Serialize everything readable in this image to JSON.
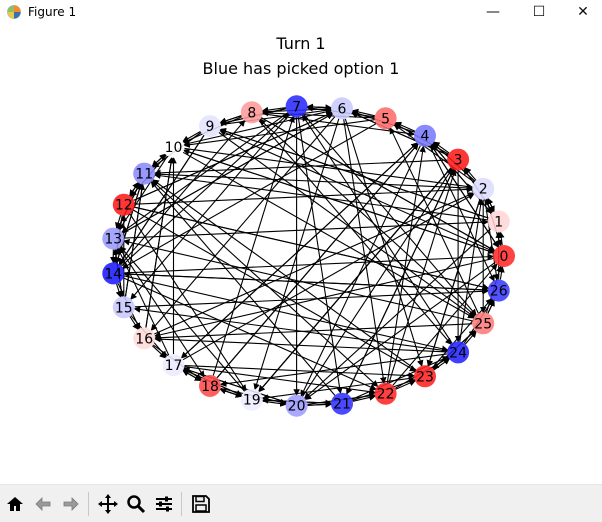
{
  "window": {
    "title": "Figure 1",
    "controls": {
      "minimize": "—",
      "maximize": "☐",
      "close": "✕"
    }
  },
  "figure": {
    "title_line1": "Turn 1",
    "title_line2": "Blue has picked option 1"
  },
  "graph": {
    "nodes": [
      {
        "id": "0",
        "color": "#ff2a2a"
      },
      {
        "id": "1",
        "color": "#ffd6d6"
      },
      {
        "id": "2",
        "color": "#dcdcff"
      },
      {
        "id": "3",
        "color": "#ff1a1a"
      },
      {
        "id": "4",
        "color": "#7a7aff"
      },
      {
        "id": "5",
        "color": "#ff6b6b"
      },
      {
        "id": "6",
        "color": "#c9c9ff"
      },
      {
        "id": "7",
        "color": "#2a2aff"
      },
      {
        "id": "8",
        "color": "#ff9a9a"
      },
      {
        "id": "9",
        "color": "#e2e2ff"
      },
      {
        "id": "10",
        "color": "#ffffff"
      },
      {
        "id": "11",
        "color": "#8a8aff"
      },
      {
        "id": "12",
        "color": "#ff1a1a"
      },
      {
        "id": "13",
        "color": "#9a9aff"
      },
      {
        "id": "14",
        "color": "#1a1aff"
      },
      {
        "id": "15",
        "color": "#c7c7ff"
      },
      {
        "id": "16",
        "color": "#ffd9d9"
      },
      {
        "id": "17",
        "color": "#ebebff"
      },
      {
        "id": "18",
        "color": "#ff4b4b"
      },
      {
        "id": "19",
        "color": "#ededff"
      },
      {
        "id": "20",
        "color": "#9d9dff"
      },
      {
        "id": "21",
        "color": "#3030ff"
      },
      {
        "id": "22",
        "color": "#ff2626"
      },
      {
        "id": "23",
        "color": "#ff2020"
      },
      {
        "id": "24",
        "color": "#2424ff"
      },
      {
        "id": "25",
        "color": "#ff7a7a"
      },
      {
        "id": "26",
        "color": "#3a3aff"
      }
    ]
  },
  "toolbar": {
    "buttons": [
      {
        "name": "home",
        "icon": "home-icon"
      },
      {
        "name": "back",
        "icon": "arrow-left-icon"
      },
      {
        "name": "forward",
        "icon": "arrow-right-icon"
      },
      {
        "name": "pan",
        "icon": "move-icon"
      },
      {
        "name": "zoom",
        "icon": "zoom-icon"
      },
      {
        "name": "configure",
        "icon": "sliders-icon"
      },
      {
        "name": "save",
        "icon": "save-icon"
      }
    ]
  }
}
